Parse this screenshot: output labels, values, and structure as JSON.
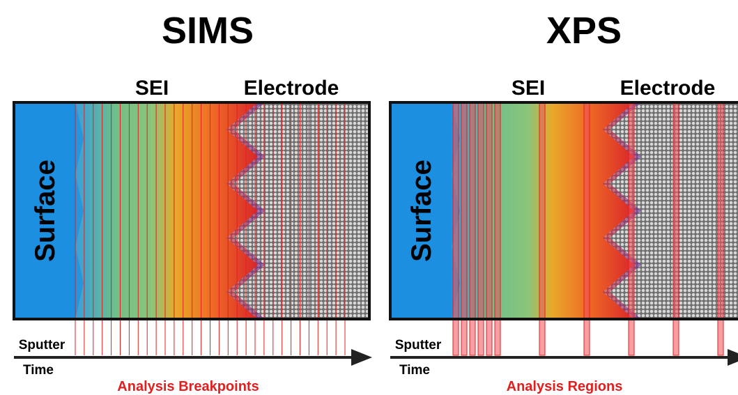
{
  "panels": [
    {
      "title": "SIMS",
      "sei": "SEI",
      "electrode": "Electrode",
      "surface": "Surface",
      "axis_line1": "Sputter",
      "axis_line2": "Time",
      "caption": "Analysis Breakpoints"
    },
    {
      "title": "XPS",
      "sei": "SEI",
      "electrode": "Electrode",
      "surface": "Surface",
      "axis_line1": "Sputter",
      "axis_line2": "Time",
      "caption": "Analysis Regions"
    }
  ]
}
